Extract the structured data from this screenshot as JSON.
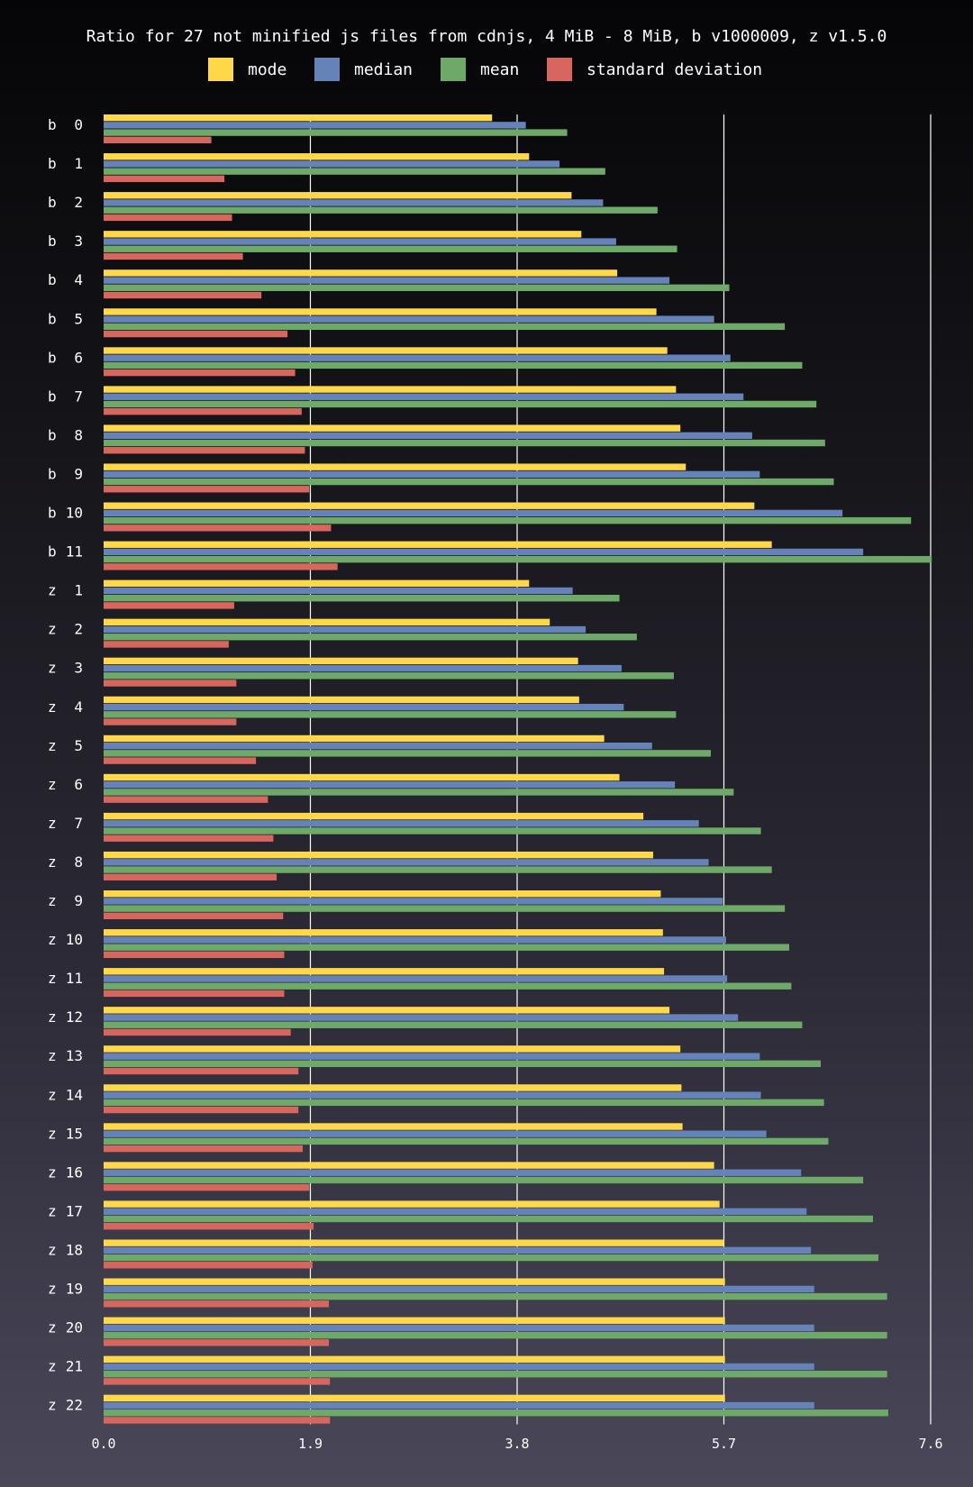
{
  "chart_data": {
    "type": "bar",
    "orientation": "horizontal",
    "title": "Ratio for 27 not minified js files from cdnjs, 4 MiB - 8 MiB, b v1000009, z v1.5.0",
    "xlim": [
      0,
      7.6
    ],
    "xticks": [
      "0.0",
      "1.9",
      "3.8",
      "5.7",
      "7.6"
    ],
    "grid": true,
    "legend_position": "top-center",
    "categories": [
      "b 0",
      "b 1",
      "b 2",
      "b 3",
      "b 4",
      "b 5",
      "b 6",
      "b 7",
      "b 8",
      "b 9",
      "b 10",
      "b 11",
      "z 1",
      "z 2",
      "z 3",
      "z 4",
      "z 5",
      "z 6",
      "z 7",
      "z 8",
      "z 9",
      "z 10",
      "z 11",
      "z 12",
      "z 13",
      "z 14",
      "z 15",
      "z 16",
      "z 17",
      "z 18",
      "z 19",
      "z 20",
      "z 21",
      "z 22"
    ],
    "series": [
      {
        "name": "mode",
        "color": "#ffd84a",
        "values": [
          3.57,
          3.91,
          4.3,
          4.39,
          4.72,
          5.08,
          5.18,
          5.26,
          5.3,
          5.35,
          5.98,
          6.14,
          3.91,
          4.1,
          4.36,
          4.37,
          4.6,
          4.74,
          4.96,
          5.05,
          5.12,
          5.14,
          5.15,
          5.2,
          5.3,
          5.31,
          5.32,
          5.61,
          5.66,
          5.7,
          5.71,
          5.71,
          5.71,
          5.71
        ]
      },
      {
        "name": "median",
        "color": "#6583b9",
        "values": [
          3.88,
          4.19,
          4.59,
          4.71,
          5.2,
          5.61,
          5.76,
          5.88,
          5.96,
          6.03,
          6.79,
          6.98,
          4.31,
          4.43,
          4.76,
          4.78,
          5.04,
          5.25,
          5.47,
          5.56,
          5.69,
          5.72,
          5.73,
          5.83,
          6.03,
          6.04,
          6.09,
          6.41,
          6.46,
          6.5,
          6.53,
          6.53,
          6.53,
          6.53
        ]
      },
      {
        "name": "mean",
        "color": "#6ea969",
        "values": [
          4.26,
          4.61,
          5.09,
          5.27,
          5.75,
          6.26,
          6.42,
          6.55,
          6.63,
          6.71,
          7.42,
          7.61,
          4.74,
          4.9,
          5.24,
          5.26,
          5.58,
          5.79,
          6.04,
          6.14,
          6.26,
          6.3,
          6.32,
          6.42,
          6.59,
          6.62,
          6.66,
          6.98,
          7.07,
          7.12,
          7.2,
          7.2,
          7.2,
          7.21
        ]
      },
      {
        "name": "standard deviation",
        "color": "#d7665e",
        "values": [
          0.99,
          1.11,
          1.18,
          1.28,
          1.45,
          1.69,
          1.76,
          1.82,
          1.85,
          1.89,
          2.09,
          2.15,
          1.2,
          1.15,
          1.22,
          1.22,
          1.4,
          1.51,
          1.56,
          1.59,
          1.65,
          1.66,
          1.66,
          1.72,
          1.79,
          1.79,
          1.83,
          1.89,
          1.93,
          1.92,
          2.07,
          2.07,
          2.08,
          2.08
        ]
      }
    ]
  }
}
